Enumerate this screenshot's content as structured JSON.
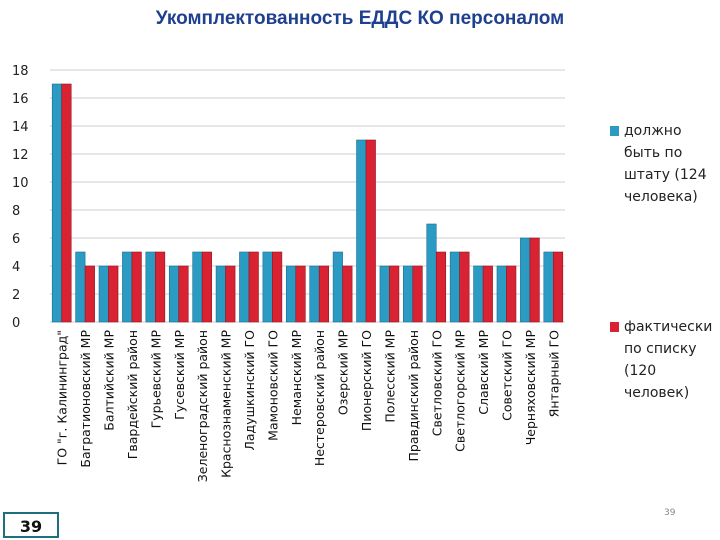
{
  "title": "Укомплектованность ЕДДС КО персоналом",
  "page_number": "39",
  "page_number_small": "39",
  "colors": {
    "series1": "#2b9bc4",
    "series2": "#d92333",
    "title": "#1f3f8f",
    "grid": "#cfcfcf"
  },
  "chart_data": {
    "type": "bar",
    "categories": [
      "ГО \"г. Калининград\"",
      "Багратионовский МР",
      "Балтийский МР",
      "Гвардейский район",
      "Гурьевский МР",
      "Гусевский МР",
      "Зеленоградский район",
      "Краснознаменский МР",
      "Ладушкинский ГО",
      "Мамоновский ГО",
      "Неманский МР",
      "Нестеровский район",
      "Озерский МР",
      "Пионерский ГО",
      "Полесский МР",
      "Правдинский район",
      "Светловский ГО",
      "Светлогорский МР",
      "Славский МР",
      "Советский ГО",
      "Черняховский МР",
      "Янтарный ГО"
    ],
    "series": [
      {
        "name": "должно быть по штату (124 человека)",
        "legend_lines": [
          "должно",
          "быть по",
          "штату (124",
          "человека)"
        ],
        "values": [
          17,
          5,
          4,
          5,
          5,
          4,
          5,
          4,
          5,
          5,
          4,
          4,
          5,
          13,
          4,
          4,
          7,
          5,
          4,
          4,
          6,
          5
        ]
      },
      {
        "name": "фактически по списку (120 человек)",
        "legend_lines": [
          "фактически",
          "по списку",
          "(120",
          "человек)"
        ],
        "values": [
          17,
          4,
          4,
          5,
          5,
          4,
          5,
          4,
          5,
          5,
          4,
          4,
          4,
          13,
          4,
          4,
          5,
          5,
          4,
          4,
          6,
          5
        ]
      }
    ],
    "ylim": [
      0,
      18
    ],
    "yticks": [
      0,
      2,
      4,
      6,
      8,
      10,
      12,
      14,
      16,
      18
    ],
    "grid": true,
    "legend_position": "right"
  }
}
